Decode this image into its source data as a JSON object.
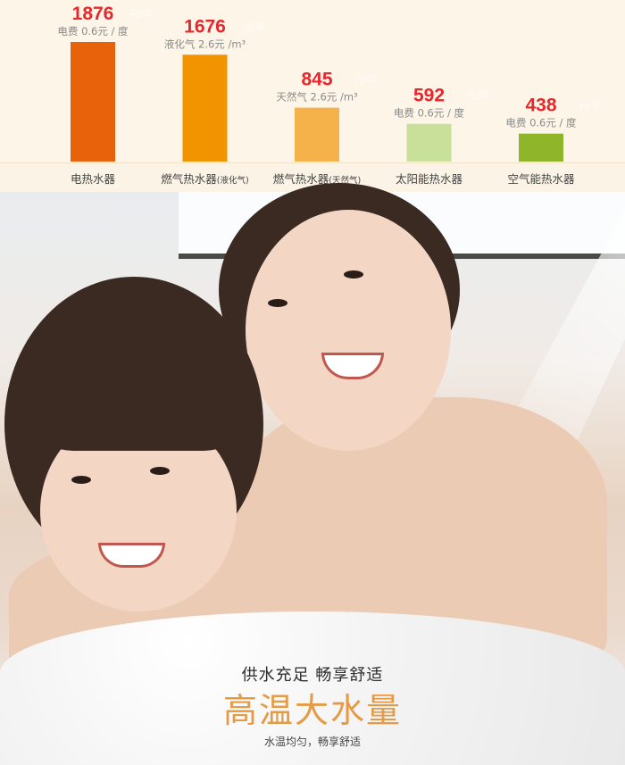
{
  "chart_data": {
    "type": "bar",
    "categories": [
      "电热水器",
      "燃气热水器(液化气)",
      "燃气热水器(天然气)",
      "太阳能热水器",
      "空气能热水器"
    ],
    "category_labels": [
      {
        "main": "电热水器",
        "sub": ""
      },
      {
        "main": "燃气热水器",
        "sub": "(液化气)"
      },
      {
        "main": "燃气热水器",
        "sub": "(天然气)"
      },
      {
        "main": "太阳能热水器",
        "sub": ""
      },
      {
        "main": "空气能热水器",
        "sub": ""
      }
    ],
    "values": [
      1876,
      1676,
      845,
      592,
      438
    ],
    "value_unit": "元/年",
    "notes": [
      "电费 0.6元 / 度",
      "液化气 2.6元 /m³",
      "天然气 2.6元 /m³",
      "电费 0.6元 / 度",
      "电费 0.6元 / 度"
    ],
    "colors": [
      "#e8620c",
      "#f29400",
      "#f5b24a",
      "#c9e09a",
      "#8fb52a"
    ],
    "value_color": "#e8262c",
    "title": "",
    "xlabel": "",
    "ylabel": "",
    "ylim": [
      0,
      1876
    ],
    "grid": false
  },
  "banner": {
    "tagline": "供水充足  畅享舒适",
    "headline": "高温大水量",
    "subline": "水温均匀，畅享舒适"
  }
}
